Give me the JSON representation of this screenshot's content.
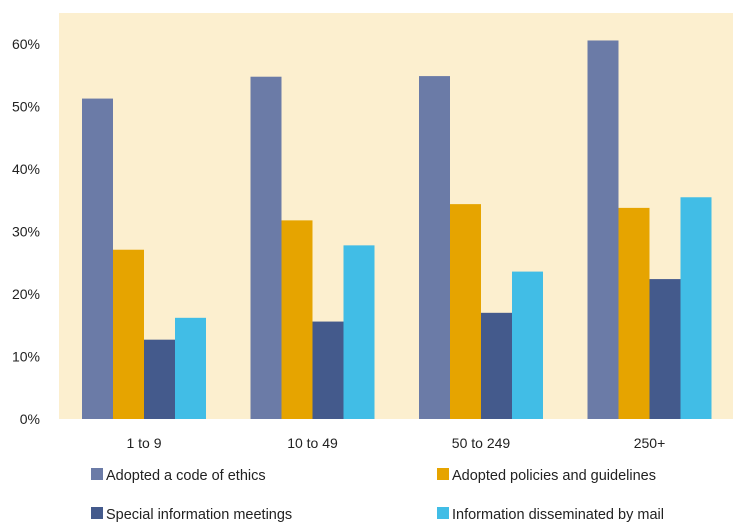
{
  "chart_data": {
    "type": "bar",
    "title": "",
    "xlabel": "",
    "ylabel": "",
    "categories": [
      "1 to 9",
      "10 to 49",
      "50 to 249",
      "250+"
    ],
    "ylim": [
      0,
      65
    ],
    "yticks": [
      0,
      10,
      20,
      30,
      40,
      50,
      60
    ],
    "ytick_labels": [
      "0%",
      "10%",
      "20%",
      "30%",
      "40%",
      "50%",
      "60%"
    ],
    "grid": false,
    "legend_position": "bottom",
    "series": [
      {
        "name": "Adopted a code of ethics",
        "color": "#6b7ba7",
        "values": [
          51.3,
          54.8,
          54.9,
          60.6
        ]
      },
      {
        "name": "Adopted policies and guidelines",
        "color": "#e6a400",
        "values": [
          27.1,
          31.8,
          34.4,
          33.8
        ]
      },
      {
        "name": "Special information meetings",
        "color": "#445a8c",
        "values": [
          12.7,
          15.6,
          17.0,
          22.4
        ]
      },
      {
        "name": "Information disseminated by mail",
        "color": "#41bde6",
        "values": [
          16.2,
          27.8,
          23.6,
          35.5
        ]
      }
    ],
    "plot_background": "#fcefcf"
  }
}
